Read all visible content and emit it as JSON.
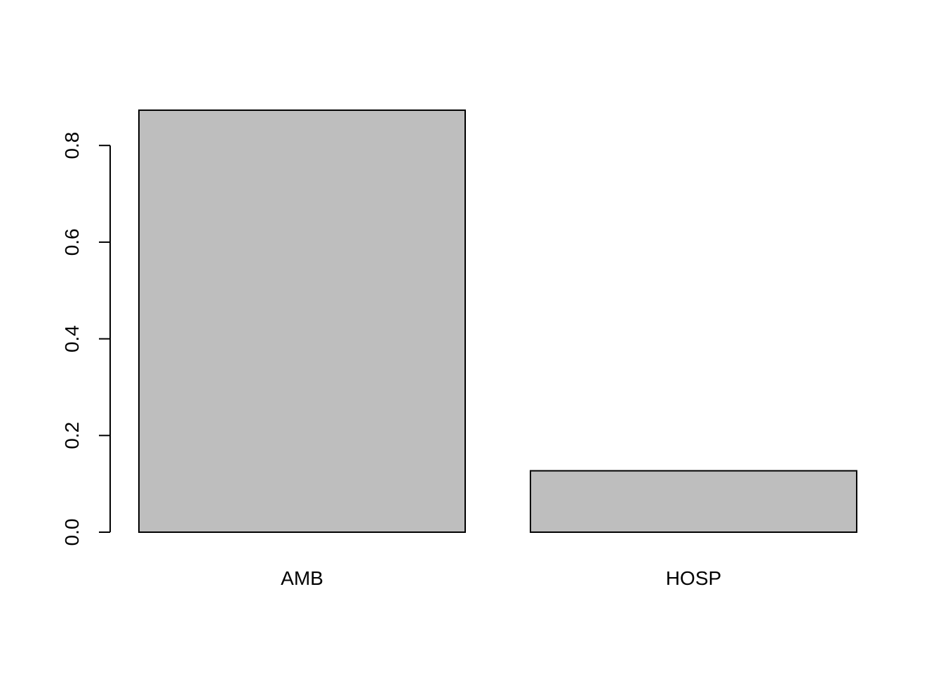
{
  "chart_data": {
    "type": "bar",
    "categories": [
      "AMB",
      "HOSP"
    ],
    "values": [
      0.873,
      0.127
    ],
    "title": "",
    "xlabel": "",
    "ylabel": "",
    "ylim": [
      0,
      0.873
    ],
    "yticks": [
      0.0,
      0.2,
      0.4,
      0.6,
      0.8
    ],
    "ytick_labels": [
      "0.0",
      "0.2",
      "0.4",
      "0.6",
      "0.8"
    ],
    "bar_color": "#bebebe",
    "border_color": "#000000",
    "grid": false,
    "legend": "none"
  }
}
